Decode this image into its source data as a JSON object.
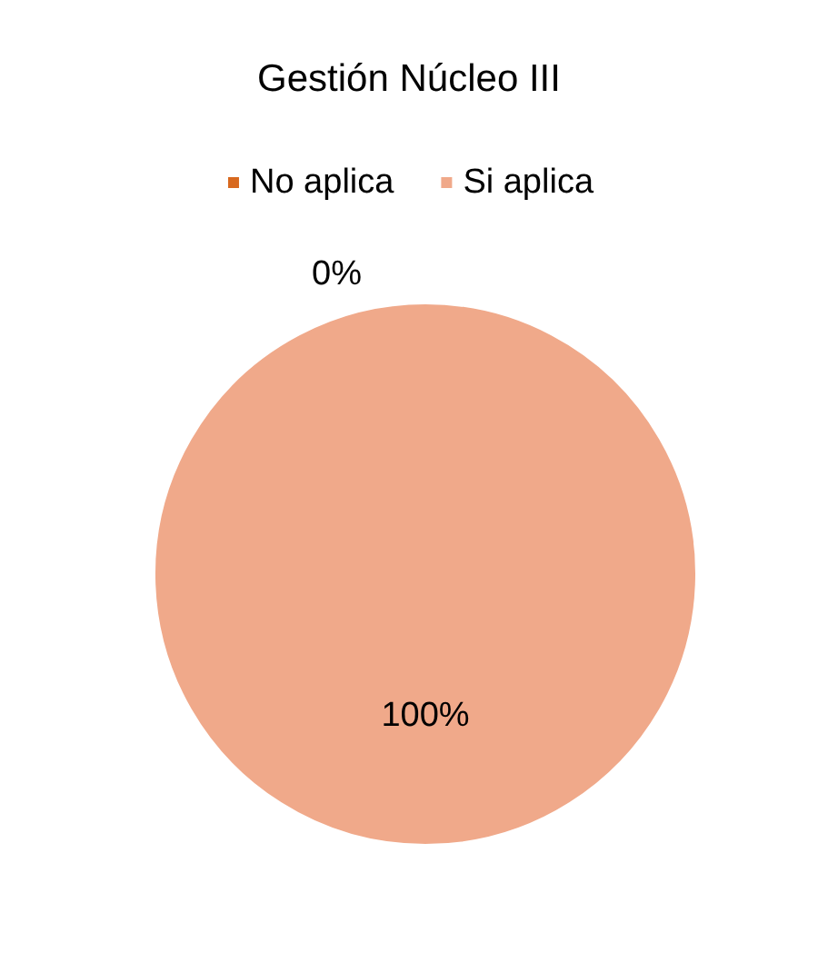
{
  "chart_data": {
    "type": "pie",
    "title": "Gestión Núcleo III",
    "categories": [
      "No aplica",
      "Si aplica"
    ],
    "values": [
      0,
      100
    ],
    "colors": [
      "#d8691f",
      "#f0a98a"
    ],
    "value_labels": [
      "0%",
      "100%"
    ],
    "legend": "top"
  }
}
